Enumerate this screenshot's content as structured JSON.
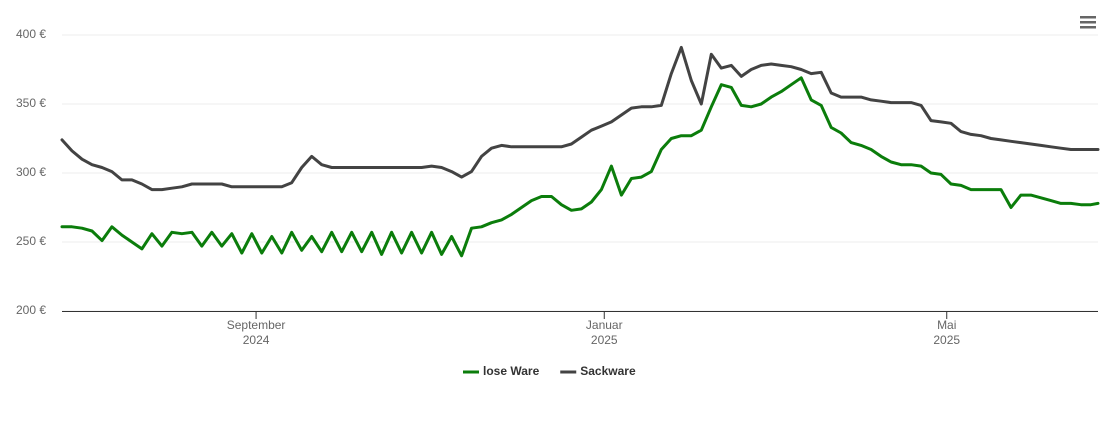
{
  "chart_data": {
    "type": "line",
    "x": [
      0,
      3.5,
      7,
      10.5,
      14,
      17.5,
      21,
      24.5,
      28,
      31.5,
      35,
      38.5,
      42,
      45.5,
      49,
      52.5,
      56,
      59.5,
      63,
      66.5,
      70,
      73.5,
      77,
      80.5,
      84,
      87.5,
      91,
      94.5,
      98,
      101.5,
      105,
      108.5,
      112,
      115.5,
      119,
      122.5,
      126,
      129.5,
      133,
      136.5,
      140,
      143.5,
      147,
      150.5,
      154,
      157.5,
      161,
      164.5,
      168,
      171.5,
      175,
      178.5,
      182,
      185.5,
      189,
      192.5,
      196,
      199.5,
      203,
      206.5,
      210,
      213.5,
      217,
      220.5,
      224,
      227.5,
      231,
      234.5,
      238,
      241.5,
      245,
      248.5,
      252,
      255.5,
      259,
      262.5,
      266,
      269.5,
      273,
      276.5,
      280,
      283.5,
      287,
      290.5,
      294,
      297.5,
      301,
      304.5,
      308,
      311.5,
      315,
      318.5,
      322,
      325.5,
      329,
      332.5,
      336,
      339.5,
      343,
      346.5,
      350,
      353.5,
      357,
      360.5,
      363
    ],
    "series": [
      {
        "name": "lose Ware",
        "color": "#0b7d0b",
        "values": [
          261,
          261,
          260,
          258,
          251,
          261,
          255,
          250,
          245,
          256,
          247,
          257,
          256,
          257,
          247,
          257,
          247,
          256,
          242,
          256,
          242,
          254,
          242,
          257,
          244,
          254,
          243,
          257,
          243,
          257,
          243,
          257,
          241,
          257,
          242,
          257,
          242,
          257,
          241,
          254,
          240,
          260,
          261,
          264,
          266,
          270,
          275,
          280,
          283,
          283,
          277,
          273,
          274,
          279,
          288,
          305,
          284,
          296,
          297,
          301,
          317,
          325,
          327,
          327,
          331,
          348,
          364,
          362,
          349,
          348,
          350,
          355,
          359,
          364,
          369,
          353,
          349,
          333,
          329,
          322,
          320,
          317,
          312,
          308,
          306,
          306,
          305,
          300,
          299,
          292,
          291,
          288,
          288,
          288,
          288,
          275,
          284,
          284,
          282,
          280,
          278,
          278,
          277,
          277,
          278
        ]
      },
      {
        "name": "Sackware",
        "color": "#434343",
        "values": [
          324,
          316,
          310,
          306,
          304,
          301,
          295,
          295,
          292,
          288,
          288,
          289,
          290,
          292,
          292,
          292,
          292,
          290,
          290,
          290,
          290,
          290,
          290,
          293,
          304,
          312,
          306,
          304,
          304,
          304,
          304,
          304,
          304,
          304,
          304,
          304,
          304,
          305,
          304,
          301,
          297,
          301,
          312,
          318,
          320,
          319,
          319,
          319,
          319,
          319,
          319,
          321,
          326,
          331,
          334,
          337,
          342,
          347,
          348,
          348,
          349,
          372,
          391,
          367,
          350,
          386,
          376,
          378,
          370,
          375,
          378,
          379,
          378,
          377,
          375,
          372,
          373,
          358,
          355,
          355,
          355,
          353,
          352,
          351,
          351,
          351,
          349,
          338,
          337,
          336,
          330,
          328,
          327,
          325,
          324,
          323,
          322,
          321,
          320,
          319,
          318,
          317,
          317,
          317,
          317
        ]
      }
    ],
    "xlim": [
      0,
      363
    ],
    "xticks": [
      {
        "value": 68,
        "label": "September\n2024"
      },
      {
        "value": 190,
        "label": "Januar\n2025"
      },
      {
        "value": 310,
        "label": "Mai\n2025"
      }
    ],
    "ylim": [
      200,
      400
    ],
    "yticks": [
      {
        "value": 200,
        "label": "200 €"
      },
      {
        "value": 250,
        "label": "250 €"
      },
      {
        "value": 300,
        "label": "300 €"
      },
      {
        "value": 350,
        "label": "350 €"
      },
      {
        "value": 400,
        "label": "400 €"
      }
    ],
    "grid": true
  }
}
